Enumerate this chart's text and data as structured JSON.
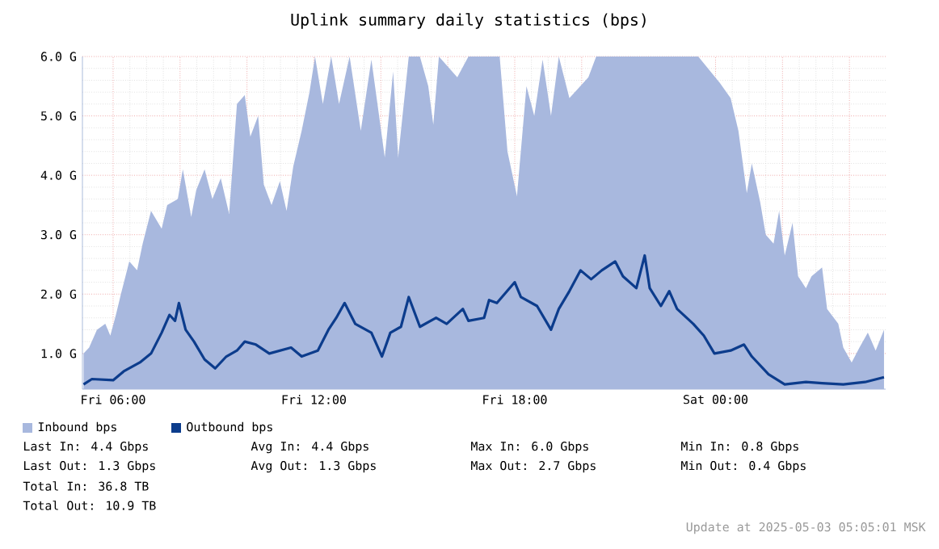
{
  "chart_data": {
    "type": "area",
    "title": "Uplink summary daily statistics (bps)",
    "xlim": [
      "2025-05-02T05:05",
      "2025-05-03T05:05"
    ],
    "ylim": [
      0.4,
      6.0
    ],
    "xticks": [
      {
        "value": "2025-05-02T06:00",
        "label": "Fri 06:00"
      },
      {
        "value": "2025-05-02T08:00",
        "label": null
      },
      {
        "value": "2025-05-02T10:00",
        "label": null
      },
      {
        "value": "2025-05-02T12:00",
        "label": "Fri 12:00"
      },
      {
        "value": "2025-05-02T14:00",
        "label": null
      },
      {
        "value": "2025-05-02T16:00",
        "label": null
      },
      {
        "value": "2025-05-02T18:00",
        "label": "Fri 18:00"
      },
      {
        "value": "2025-05-02T20:00",
        "label": null
      },
      {
        "value": "2025-05-02T22:00",
        "label": null
      },
      {
        "value": "2025-05-03T00:00",
        "label": "Sat 00:00"
      },
      {
        "value": "2025-05-03T02:00",
        "label": null
      },
      {
        "value": "2025-05-03T04:00",
        "label": null
      }
    ],
    "yticks": [
      {
        "value": 1,
        "label": "1.0 G"
      },
      {
        "value": 2,
        "label": "2.0 G"
      },
      {
        "value": 3,
        "label": "3.0 G"
      },
      {
        "value": 4,
        "label": "4.0 G"
      },
      {
        "value": 5,
        "label": "5.0 G"
      },
      {
        "value": 6,
        "label": "6.0 G"
      }
    ],
    "grid": true,
    "legend": "bottom left",
    "series": [
      {
        "name": "Inbound bps",
        "color": "#a8b8de",
        "x": [
          "2025-05-02T05:07",
          "2025-05-02T05:17",
          "2025-05-02T05:31",
          "2025-05-02T05:46",
          "2025-05-02T05:55",
          "2025-05-02T06:05",
          "2025-05-02T06:14",
          "2025-05-02T06:29",
          "2025-05-02T06:43",
          "2025-05-02T06:53",
          "2025-05-02T07:08",
          "2025-05-02T07:27",
          "2025-05-02T07:37",
          "2025-05-02T07:56",
          "2025-05-02T08:05",
          "2025-05-02T08:20",
          "2025-05-02T08:29",
          "2025-05-02T08:44",
          "2025-05-02T08:58",
          "2025-05-02T09:13",
          "2025-05-02T09:28",
          "2025-05-02T09:42",
          "2025-05-02T09:56",
          "2025-05-02T10:06",
          "2025-05-02T10:20",
          "2025-05-02T10:30",
          "2025-05-02T10:44",
          "2025-05-02T10:59",
          "2025-05-02T11:11",
          "2025-05-02T11:23",
          "2025-05-02T11:38",
          "2025-05-02T11:52",
          "2025-05-02T12:02",
          "2025-05-02T12:16",
          "2025-05-02T12:31",
          "2025-05-02T12:45",
          "2025-05-02T13:04",
          "2025-05-02T13:24",
          "2025-05-02T13:43",
          "2025-05-02T14:07",
          "2025-05-02T14:22",
          "2025-05-02T14:31",
          "2025-05-02T14:50",
          "2025-05-02T15:10",
          "2025-05-02T15:25",
          "2025-05-02T15:34",
          "2025-05-02T15:44",
          "2025-05-02T16:17",
          "2025-05-02T16:37",
          "2025-05-02T17:05",
          "2025-05-02T17:33",
          "2025-05-02T17:47",
          "2025-05-02T18:04",
          "2025-05-02T18:21",
          "2025-05-02T18:35",
          "2025-05-02T18:50",
          "2025-05-02T19:05",
          "2025-05-02T19:19",
          "2025-05-02T19:38",
          "2025-05-02T20:12",
          "2025-05-02T20:26",
          "2025-05-02T23:29",
          "2025-05-03T00:08",
          "2025-05-03T00:27",
          "2025-05-03T00:41",
          "2025-05-03T00:56",
          "2025-05-03T01:05",
          "2025-05-03T01:20",
          "2025-05-03T01:30",
          "2025-05-03T01:44",
          "2025-05-03T01:54",
          "2025-05-03T02:04",
          "2025-05-03T02:18",
          "2025-05-03T02:28",
          "2025-05-03T02:42",
          "2025-05-03T02:52",
          "2025-05-03T03:11",
          "2025-05-03T03:20",
          "2025-05-03T03:40",
          "2025-05-03T03:49",
          "2025-05-03T04:04",
          "2025-05-03T04:18",
          "2025-05-03T04:33",
          "2025-05-03T04:47",
          "2025-05-03T05:02"
        ],
        "values": [
          1.0,
          1.1,
          1.4,
          1.5,
          1.3,
          1.65,
          2.0,
          2.55,
          2.4,
          2.85,
          3.4,
          3.1,
          3.5,
          3.6,
          4.1,
          3.3,
          3.75,
          4.1,
          3.6,
          3.95,
          3.35,
          5.2,
          5.35,
          4.65,
          5.0,
          3.85,
          3.5,
          3.9,
          3.4,
          4.15,
          4.75,
          5.4,
          6.0,
          5.2,
          6.0,
          5.2,
          6.0,
          4.75,
          5.95,
          4.3,
          5.75,
          4.3,
          6.0,
          6.0,
          5.5,
          4.85,
          6.0,
          5.65,
          6.0,
          6.0,
          6.0,
          4.4,
          3.65,
          5.5,
          5.0,
          5.95,
          5.0,
          6.0,
          5.3,
          5.65,
          6.0,
          6.0,
          5.55,
          5.3,
          4.75,
          3.7,
          4.2,
          3.55,
          3.0,
          2.85,
          3.4,
          2.65,
          3.2,
          2.3,
          2.1,
          2.3,
          2.45,
          1.75,
          1.5,
          1.1,
          0.85,
          1.1,
          1.35,
          1.05,
          1.4
        ]
      },
      {
        "name": "Outbound bps",
        "type": "line",
        "color": "#0c3c8c",
        "x": [
          "2025-05-02T05:07",
          "2025-05-02T05:22",
          "2025-05-02T06:00",
          "2025-05-02T06:19",
          "2025-05-02T06:48",
          "2025-05-02T07:08",
          "2025-05-02T07:27",
          "2025-05-02T07:41",
          "2025-05-02T07:51",
          "2025-05-02T07:58",
          "2025-05-02T08:10",
          "2025-05-02T08:25",
          "2025-05-02T08:44",
          "2025-05-02T09:03",
          "2025-05-02T09:23",
          "2025-05-02T09:42",
          "2025-05-02T09:56",
          "2025-05-02T10:16",
          "2025-05-02T10:40",
          "2025-05-02T11:19",
          "2025-05-02T11:38",
          "2025-05-02T12:07",
          "2025-05-02T12:26",
          "2025-05-02T12:40",
          "2025-05-02T12:55",
          "2025-05-02T13:14",
          "2025-05-02T13:43",
          "2025-05-02T14:02",
          "2025-05-02T14:17",
          "2025-05-02T14:36",
          "2025-05-02T14:50",
          "2025-05-02T15:10",
          "2025-05-02T15:39",
          "2025-05-02T15:58",
          "2025-05-02T16:27",
          "2025-05-02T16:37",
          "2025-05-02T17:05",
          "2025-05-02T17:14",
          "2025-05-02T17:28",
          "2025-05-02T18:00",
          "2025-05-02T18:11",
          "2025-05-02T18:40",
          "2025-05-02T19:05",
          "2025-05-02T19:19",
          "2025-05-02T19:38",
          "2025-05-02T19:58",
          "2025-05-02T20:17",
          "2025-05-02T20:36",
          "2025-05-02T21:00",
          "2025-05-02T21:14",
          "2025-05-02T21:38",
          "2025-05-02T21:53",
          "2025-05-02T22:02",
          "2025-05-02T22:22",
          "2025-05-02T22:37",
          "2025-05-02T22:51",
          "2025-05-02T23:20",
          "2025-05-02T23:39",
          "2025-05-02T23:58",
          "2025-05-03T00:27",
          "2025-05-03T00:51",
          "2025-05-03T01:05",
          "2025-05-03T01:35",
          "2025-05-03T02:04",
          "2025-05-03T02:42",
          "2025-05-03T03:11",
          "2025-05-03T03:49",
          "2025-05-03T04:28",
          "2025-05-03T05:02"
        ],
        "values": [
          0.48,
          0.57,
          0.55,
          0.7,
          0.85,
          1.0,
          1.35,
          1.65,
          1.55,
          1.85,
          1.4,
          1.2,
          0.9,
          0.75,
          0.95,
          1.05,
          1.2,
          1.15,
          1.0,
          1.1,
          0.95,
          1.05,
          1.4,
          1.6,
          1.85,
          1.5,
          1.35,
          0.95,
          1.35,
          1.45,
          1.95,
          1.45,
          1.6,
          1.5,
          1.75,
          1.55,
          1.6,
          1.9,
          1.85,
          2.2,
          1.95,
          1.8,
          1.4,
          1.75,
          2.05,
          2.4,
          2.25,
          2.4,
          2.55,
          2.3,
          2.1,
          2.65,
          2.1,
          1.8,
          2.05,
          1.75,
          1.5,
          1.3,
          1.0,
          1.05,
          1.15,
          0.95,
          0.65,
          0.48,
          0.52,
          0.5,
          0.48,
          0.52,
          0.6
        ]
      }
    ],
    "annotations": [
      "Last In:      4.4 Gbps",
      "Avg In:      4.4 Gbps",
      "Max In:      6.0 Gbps",
      "Min In:      0.8 Gbps",
      "Last Out:     1.3 Gbps",
      "Avg Out:     1.3 Gbps",
      "Max Out:     2.7 Gbps",
      "Min Out:     0.4 Gbps",
      "Total In:   36.8 TB",
      "Total Out:  10.9 TB",
      "Update at 2025-05-03 05:05:01 MSK"
    ]
  }
}
